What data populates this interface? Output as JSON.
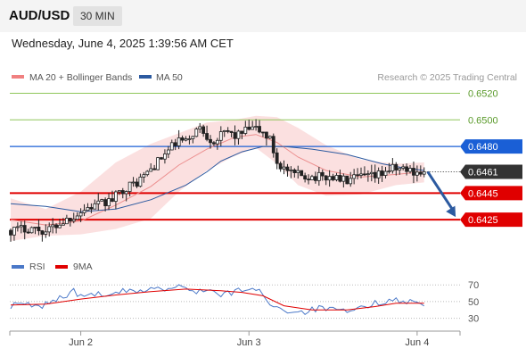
{
  "header": {
    "symbol": "AUD/USD",
    "timeframe": "30 MIN"
  },
  "datetime": "Wednesday, June 4, 2025 1:39:56 AM CET",
  "legend": [
    {
      "label": "MA 20 + Bollinger Bands",
      "color": "#f08080"
    },
    {
      "label": "MA 50",
      "color": "#2c5aa0"
    }
  ],
  "attribution": "Research © 2025 Trading Central",
  "rsi_legend": [
    {
      "label": "RSI",
      "color": "#4a78c8"
    },
    {
      "label": "9MA",
      "color": "#e00000"
    }
  ],
  "chart_data": {
    "type": "candlestick",
    "ylim": [
      0.6405,
      0.6527
    ],
    "current_price": "0.6461",
    "x_ticks": [
      {
        "label": "Jun 2",
        "index": 20
      },
      {
        "label": "Jun 3",
        "index": 68
      },
      {
        "label": "Jun 4",
        "index": 116
      }
    ],
    "levels": [
      {
        "value": 0.652,
        "label": "0.6520",
        "kind": "target",
        "color": "#8fc65a"
      },
      {
        "value": 0.65,
        "label": "0.6500",
        "kind": "target",
        "color": "#8fc65a"
      },
      {
        "value": 0.648,
        "label": "0.6480",
        "kind": "pivot",
        "color": "#1a5fd6"
      },
      {
        "value": 0.6445,
        "label": "0.6445",
        "kind": "support",
        "color": "#e00000"
      },
      {
        "value": 0.6425,
        "label": "0.6425",
        "kind": "support",
        "color": "#e00000"
      }
    ],
    "close_path": [
      [
        0,
        0.6417
      ],
      [
        6,
        0.6419
      ],
      [
        10,
        0.6416
      ],
      [
        13,
        0.6421
      ],
      [
        18,
        0.6428
      ],
      [
        22,
        0.6434
      ],
      [
        26,
        0.6437
      ],
      [
        29,
        0.644
      ],
      [
        32,
        0.6448
      ],
      [
        36,
        0.6453
      ],
      [
        40,
        0.6463
      ],
      [
        44,
        0.6474
      ],
      [
        48,
        0.6485
      ],
      [
        50,
        0.6483
      ],
      [
        52,
        0.649
      ],
      [
        54,
        0.6494
      ],
      [
        56,
        0.6488
      ],
      [
        58,
        0.6484
      ],
      [
        60,
        0.6488
      ],
      [
        62,
        0.6491
      ],
      [
        64,
        0.6488
      ],
      [
        66,
        0.649
      ],
      [
        68,
        0.6493
      ],
      [
        70,
        0.6493
      ],
      [
        72,
        0.649
      ],
      [
        74,
        0.6485
      ],
      [
        76,
        0.6468
      ],
      [
        80,
        0.6459
      ],
      [
        84,
        0.6458
      ],
      [
        88,
        0.6457
      ],
      [
        92,
        0.6457
      ],
      [
        96,
        0.6454
      ],
      [
        100,
        0.6457
      ],
      [
        104,
        0.6457
      ],
      [
        108,
        0.6463
      ],
      [
        112,
        0.6463
      ],
      [
        116,
        0.6461
      ],
      [
        118,
        0.6461
      ]
    ],
    "ma50": [
      [
        0,
        0.6437
      ],
      [
        10,
        0.6435
      ],
      [
        20,
        0.6431
      ],
      [
        30,
        0.6433
      ],
      [
        40,
        0.644
      ],
      [
        50,
        0.6451
      ],
      [
        56,
        0.6461
      ],
      [
        60,
        0.6469
      ],
      [
        66,
        0.6476
      ],
      [
        72,
        0.648
      ],
      [
        78,
        0.648
      ],
      [
        86,
        0.6478
      ],
      [
        96,
        0.6474
      ],
      [
        106,
        0.6467
      ],
      [
        112,
        0.6464
      ],
      [
        118,
        0.6462
      ]
    ],
    "ma20": [
      [
        0,
        0.6425
      ],
      [
        10,
        0.6421
      ],
      [
        20,
        0.6424
      ],
      [
        30,
        0.6436
      ],
      [
        40,
        0.645
      ],
      [
        48,
        0.6466
      ],
      [
        56,
        0.6478
      ],
      [
        64,
        0.6487
      ],
      [
        70,
        0.6489
      ],
      [
        76,
        0.6483
      ],
      [
        82,
        0.6472
      ],
      [
        90,
        0.6462
      ],
      [
        100,
        0.6457
      ],
      [
        110,
        0.6459
      ],
      [
        118,
        0.6461
      ]
    ],
    "bb_upper": [
      [
        0,
        0.6441
      ],
      [
        10,
        0.6433
      ],
      [
        20,
        0.6446
      ],
      [
        30,
        0.6468
      ],
      [
        40,
        0.6482
      ],
      [
        48,
        0.649
      ],
      [
        56,
        0.6498
      ],
      [
        64,
        0.65
      ],
      [
        70,
        0.6503
      ],
      [
        76,
        0.6502
      ],
      [
        82,
        0.6494
      ],
      [
        90,
        0.6481
      ],
      [
        100,
        0.647
      ],
      [
        110,
        0.6467
      ],
      [
        118,
        0.6468
      ]
    ],
    "bb_lower": [
      [
        0,
        0.6409
      ],
      [
        10,
        0.6413
      ],
      [
        20,
        0.6414
      ],
      [
        30,
        0.6418
      ],
      [
        40,
        0.6426
      ],
      [
        48,
        0.6446
      ],
      [
        56,
        0.6462
      ],
      [
        64,
        0.6473
      ],
      [
        70,
        0.6479
      ],
      [
        76,
        0.6467
      ],
      [
        82,
        0.6451
      ],
      [
        90,
        0.6443
      ],
      [
        100,
        0.6444
      ],
      [
        110,
        0.6451
      ],
      [
        118,
        0.6453
      ]
    ],
    "arrow": {
      "from": [
        118,
        0.6461
      ],
      "to": [
        127,
        0.6427
      ]
    },
    "rsi": {
      "ylim": [
        20,
        82
      ],
      "ticks": [
        70,
        50,
        30
      ],
      "rsi_path": [
        [
          0,
          45
        ],
        [
          4,
          47
        ],
        [
          8,
          43
        ],
        [
          12,
          51
        ],
        [
          16,
          58
        ],
        [
          18,
          63
        ],
        [
          20,
          55
        ],
        [
          24,
          60
        ],
        [
          28,
          55
        ],
        [
          32,
          63
        ],
        [
          36,
          60
        ],
        [
          40,
          67
        ],
        [
          44,
          64
        ],
        [
          48,
          68
        ],
        [
          52,
          62
        ],
        [
          56,
          65
        ],
        [
          60,
          57
        ],
        [
          64,
          62
        ],
        [
          68,
          66
        ],
        [
          72,
          60
        ],
        [
          74,
          48
        ],
        [
          76,
          43
        ],
        [
          80,
          38
        ],
        [
          84,
          38
        ],
        [
          88,
          42
        ],
        [
          92,
          40
        ],
        [
          96,
          37
        ],
        [
          100,
          42
        ],
        [
          104,
          48
        ],
        [
          108,
          52
        ],
        [
          112,
          51
        ],
        [
          116,
          49
        ],
        [
          118,
          48
        ]
      ],
      "ma_path": [
        [
          0,
          46
        ],
        [
          10,
          47
        ],
        [
          20,
          53
        ],
        [
          30,
          58
        ],
        [
          40,
          62
        ],
        [
          50,
          65
        ],
        [
          60,
          63
        ],
        [
          66,
          61
        ],
        [
          72,
          57
        ],
        [
          78,
          45
        ],
        [
          86,
          40
        ],
        [
          96,
          40
        ],
        [
          104,
          44
        ],
        [
          110,
          48
        ],
        [
          118,
          48
        ]
      ]
    }
  }
}
